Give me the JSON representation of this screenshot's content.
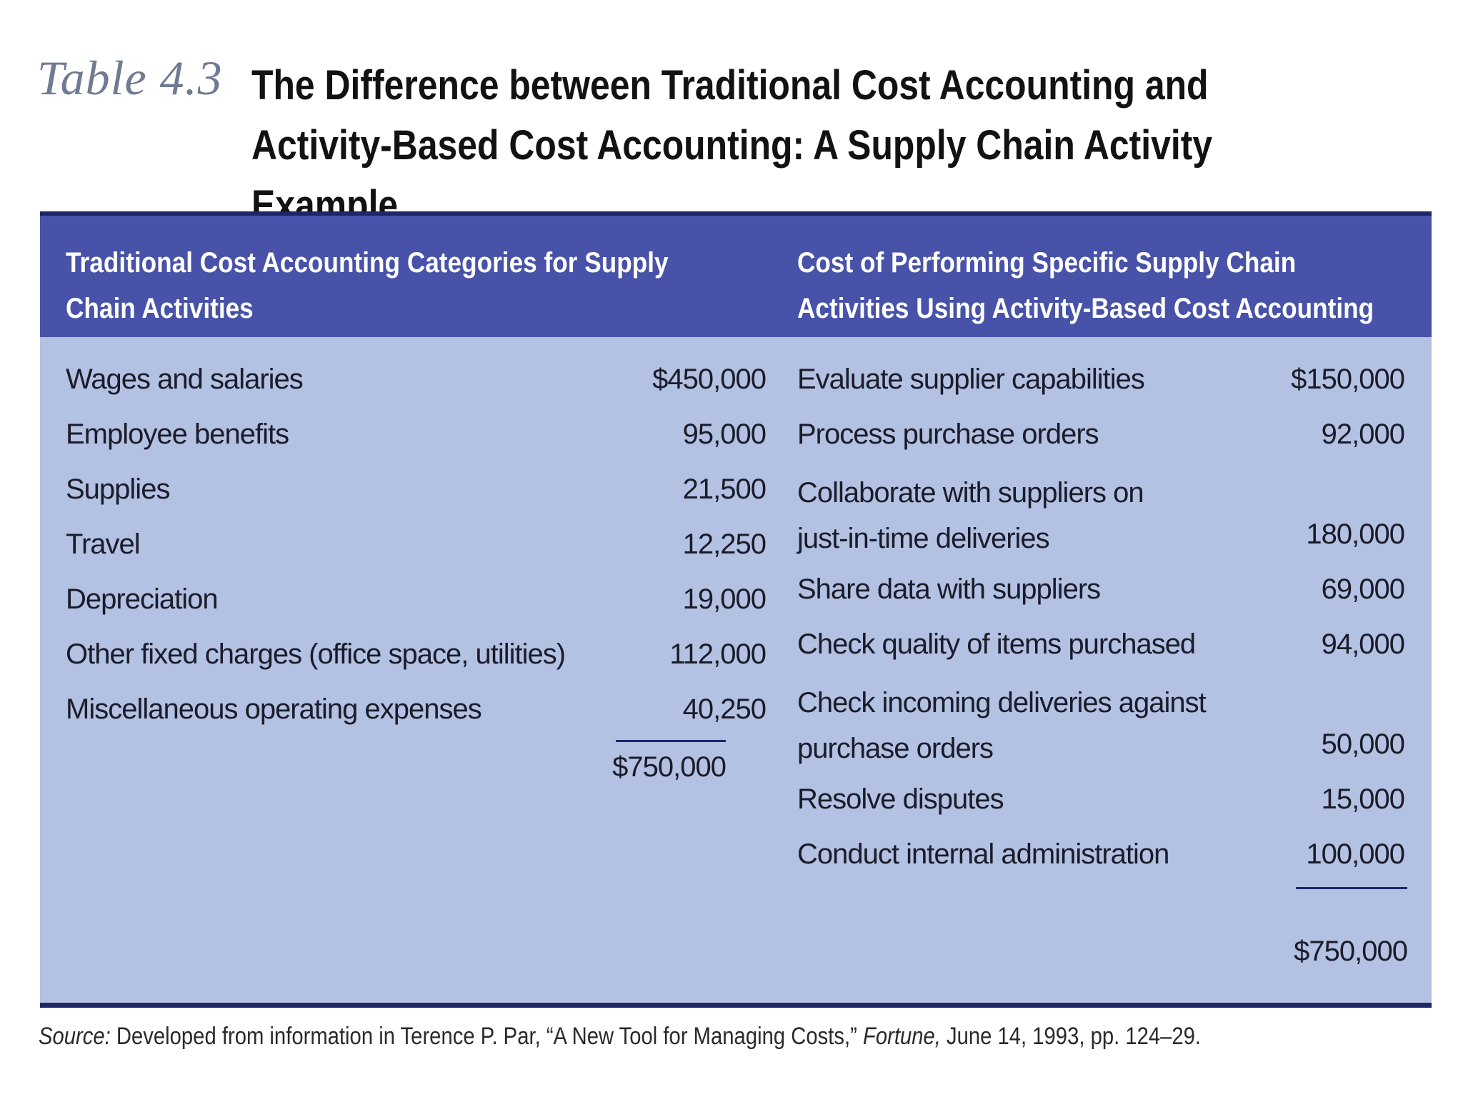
{
  "title": {
    "label": "Table 4.3",
    "text": "The Difference between Traditional Cost Accounting and Activity-Based Cost Accounting: A Supply Chain Activity Example"
  },
  "table": {
    "left_header": "Traditional Cost Accounting Categories for Supply\nChain Activities",
    "right_header": "Cost of Performing Specific Supply Chain\nActivities Using Activity-Based Cost Accounting",
    "left_rows": [
      {
        "label": "Wages and salaries",
        "value": "$450,000"
      },
      {
        "label": "Employee benefits",
        "value": "95,000"
      },
      {
        "label": "Supplies",
        "value": "21,500"
      },
      {
        "label": "Travel",
        "value": "12,250"
      },
      {
        "label": "Depreciation",
        "value": "19,000"
      },
      {
        "label": "Other fixed charges (office space, utilities)",
        "value": "112,000"
      },
      {
        "label": "Miscellaneous operating expenses",
        "value": "40,250"
      }
    ],
    "left_total": "$750,000",
    "right_rows": [
      {
        "label": "Evaluate supplier capabilities",
        "value": "$150,000"
      },
      {
        "label": "Process purchase orders",
        "value": "92,000"
      },
      {
        "label": "Collaborate with suppliers on\njust-in-time deliveries",
        "value": "180,000"
      },
      {
        "label": "Share data with suppliers",
        "value": "69,000"
      },
      {
        "label": "Check quality of items purchased",
        "value": "94,000"
      },
      {
        "label": "Check incoming deliveries against\npurchase orders",
        "value": "50,000"
      },
      {
        "label": "Resolve disputes",
        "value": "15,000"
      },
      {
        "label": "Conduct internal administration",
        "value": "100,000"
      }
    ],
    "right_total": "$750,000"
  },
  "source": {
    "prefix": "Source:",
    "text_before_italic": " Developed from information in Terence P. Par, “A New Tool for Managing Costs,” ",
    "italic": "Fortune,",
    "text_after_italic": " June 14, 1993, pp. 124–29."
  }
}
